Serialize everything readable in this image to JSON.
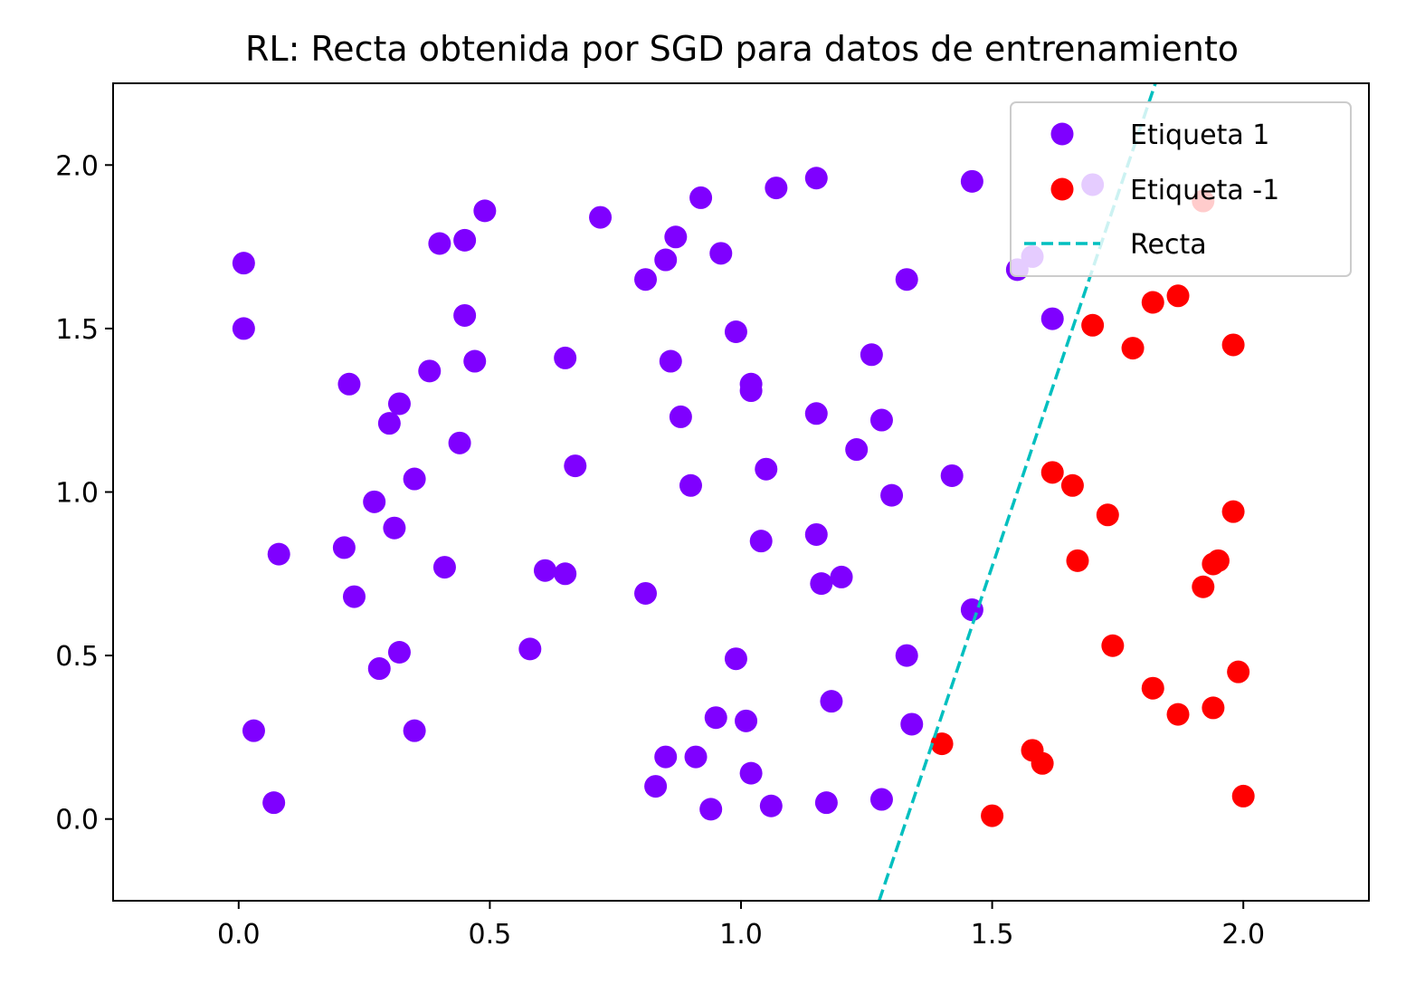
{
  "chart_data": {
    "type": "scatter",
    "title": "RL: Recta obtenida por SGD para datos de entrenamiento",
    "xlabel": "",
    "ylabel": "",
    "xlim": [
      -0.25,
      2.25
    ],
    "ylim": [
      -0.25,
      2.25
    ],
    "x_ticks": [
      "0.0",
      "0.5",
      "1.0",
      "1.5",
      "2.0"
    ],
    "y_ticks": [
      "0.0",
      "0.5",
      "1.0",
      "1.5",
      "2.0"
    ],
    "grid": false,
    "legend_position": "top-right",
    "series": [
      {
        "name": "Etiqueta 1",
        "color": "#7f00ff",
        "points": [
          [
            0.01,
            1.7
          ],
          [
            0.01,
            1.5
          ],
          [
            0.03,
            0.27
          ],
          [
            0.07,
            0.05
          ],
          [
            0.08,
            0.81
          ],
          [
            0.21,
            0.83
          ],
          [
            0.22,
            1.33
          ],
          [
            0.23,
            0.68
          ],
          [
            0.27,
            0.97
          ],
          [
            0.28,
            0.46
          ],
          [
            0.3,
            1.21
          ],
          [
            0.31,
            0.89
          ],
          [
            0.32,
            0.51
          ],
          [
            0.32,
            1.27
          ],
          [
            0.35,
            0.27
          ],
          [
            0.35,
            1.04
          ],
          [
            0.38,
            1.37
          ],
          [
            0.4,
            1.76
          ],
          [
            0.41,
            0.77
          ],
          [
            0.44,
            1.15
          ],
          [
            0.45,
            1.77
          ],
          [
            0.45,
            1.54
          ],
          [
            0.47,
            1.4
          ],
          [
            0.49,
            1.86
          ],
          [
            0.58,
            0.52
          ],
          [
            0.61,
            0.76
          ],
          [
            0.65,
            0.75
          ],
          [
            0.65,
            1.41
          ],
          [
            0.67,
            1.08
          ],
          [
            0.72,
            1.84
          ],
          [
            0.81,
            0.69
          ],
          [
            0.81,
            1.65
          ],
          [
            0.83,
            0.1
          ],
          [
            0.85,
            0.19
          ],
          [
            0.85,
            1.71
          ],
          [
            0.86,
            1.4
          ],
          [
            0.87,
            1.78
          ],
          [
            0.88,
            1.23
          ],
          [
            0.9,
            1.02
          ],
          [
            0.91,
            0.19
          ],
          [
            0.92,
            1.9
          ],
          [
            0.94,
            0.03
          ],
          [
            0.95,
            0.31
          ],
          [
            0.96,
            1.73
          ],
          [
            0.99,
            0.49
          ],
          [
            0.99,
            1.49
          ],
          [
            1.01,
            0.3
          ],
          [
            1.02,
            1.33
          ],
          [
            1.02,
            1.31
          ],
          [
            1.02,
            0.14
          ],
          [
            1.04,
            0.85
          ],
          [
            1.05,
            1.07
          ],
          [
            1.06,
            0.04
          ],
          [
            1.07,
            1.93
          ],
          [
            1.15,
            1.96
          ],
          [
            1.15,
            1.24
          ],
          [
            1.15,
            0.87
          ],
          [
            1.16,
            0.72
          ],
          [
            1.17,
            0.05
          ],
          [
            1.18,
            0.36
          ],
          [
            1.2,
            0.74
          ],
          [
            1.23,
            1.13
          ],
          [
            1.26,
            1.42
          ],
          [
            1.28,
            0.06
          ],
          [
            1.28,
            1.22
          ],
          [
            1.3,
            0.99
          ],
          [
            1.33,
            0.5
          ],
          [
            1.33,
            1.65
          ],
          [
            1.34,
            0.29
          ],
          [
            1.42,
            1.05
          ],
          [
            1.46,
            0.64
          ],
          [
            1.46,
            1.95
          ],
          [
            1.55,
            1.68
          ],
          [
            1.58,
            1.72
          ],
          [
            1.62,
            1.53
          ],
          [
            1.7,
            1.94
          ]
        ]
      },
      {
        "name": "Etiqueta -1",
        "color": "#ff0000",
        "points": [
          [
            1.4,
            0.23
          ],
          [
            1.5,
            0.01
          ],
          [
            1.58,
            0.21
          ],
          [
            1.6,
            0.17
          ],
          [
            1.62,
            1.06
          ],
          [
            1.66,
            1.02
          ],
          [
            1.67,
            0.79
          ],
          [
            1.7,
            1.51
          ],
          [
            1.73,
            0.93
          ],
          [
            1.74,
            0.53
          ],
          [
            1.78,
            1.44
          ],
          [
            1.82,
            1.58
          ],
          [
            1.82,
            0.4
          ],
          [
            1.87,
            1.6
          ],
          [
            1.87,
            0.32
          ],
          [
            1.92,
            0.71
          ],
          [
            1.92,
            1.89
          ],
          [
            1.94,
            0.34
          ],
          [
            1.94,
            0.78
          ],
          [
            1.95,
            0.79
          ],
          [
            1.98,
            1.45
          ],
          [
            1.98,
            0.94
          ],
          [
            1.99,
            0.45
          ],
          [
            2.0,
            0.07
          ]
        ]
      }
    ],
    "line": {
      "name": "Recta",
      "color": "#00bfbf",
      "style": "dashed",
      "points": [
        [
          1.275,
          -0.25
        ],
        [
          1.825,
          2.25
        ]
      ]
    }
  }
}
